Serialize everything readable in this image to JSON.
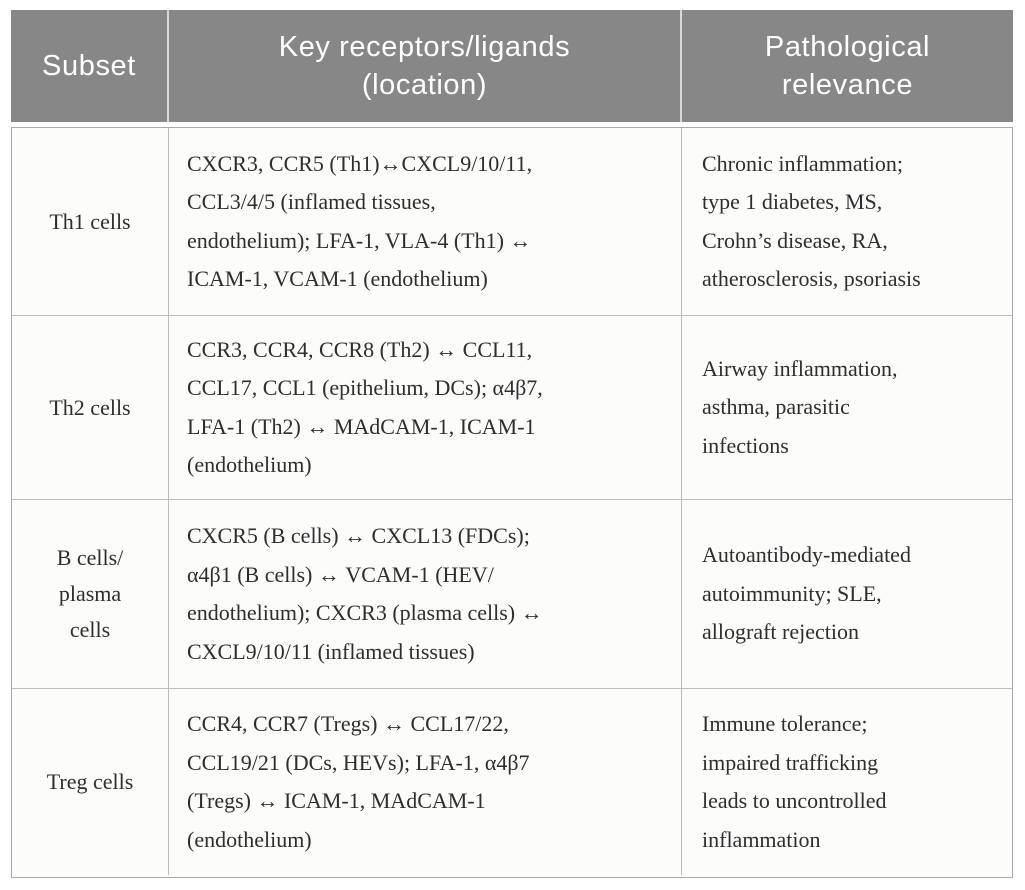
{
  "header": {
    "subset": "Subset",
    "receptors": "Key receptors/ligands\n(location)",
    "relevance": "Pathological\nrelevance"
  },
  "rows": [
    {
      "subset": "Th1 cells",
      "receptors": "CXCR3, CCR5 (Th1)↔CXCL9/10/11,\nCCL3/4/5 (inflamed tissues,\nendothelium); LFA-1, VLA-4 (Th1) ↔\nICAM-1, VCAM-1 (endothelium)",
      "relevance": "Chronic inflammation;\ntype 1 diabetes, MS,\nCrohn’s disease, RA,\natherosclerosis, psoriasis"
    },
    {
      "subset": "Th2 cells",
      "receptors": "CCR3, CCR4, CCR8 (Th2) ↔ CCL11,\nCCL17, CCL1 (epithelium, DCs); α4β7,\nLFA-1 (Th2) ↔ MAdCAM-1, ICAM-1\n(endothelium)",
      "relevance": "Airway inflammation,\nasthma, parasitic\ninfections"
    },
    {
      "subset": "B cells/\nplasma\ncells",
      "receptors": "CXCR5 (B cells) ↔ CXCL13 (FDCs);\nα4β1 (B cells) ↔ VCAM-1 (HEV/\nendothelium); CXCR3 (plasma cells) ↔\nCXCL9/10/11 (inflamed tissues)",
      "relevance": "Autoantibody-mediated\nautoimmunity; SLE,\nallograft rejection"
    },
    {
      "subset": "Treg cells",
      "receptors": "CCR4, CCR7 (Tregs) ↔ CCL17/22,\nCCL19/21 (DCs, HEVs); LFA-1, α4β7\n(Tregs) ↔ ICAM-1, MAdCAM-1\n(endothelium)",
      "relevance": "Immune tolerance;\nimpaired trafficking\nleads to uncontrolled\ninflammation"
    }
  ],
  "colors": {
    "header_bg": "#878787",
    "header_text": "#ffffff",
    "header_divider": "#d9d9d9",
    "body_text": "#2e2e2e",
    "border": "#bdbdbd",
    "outer_border": "#a9a9a9",
    "cell_bg": "#fcfcfb"
  }
}
